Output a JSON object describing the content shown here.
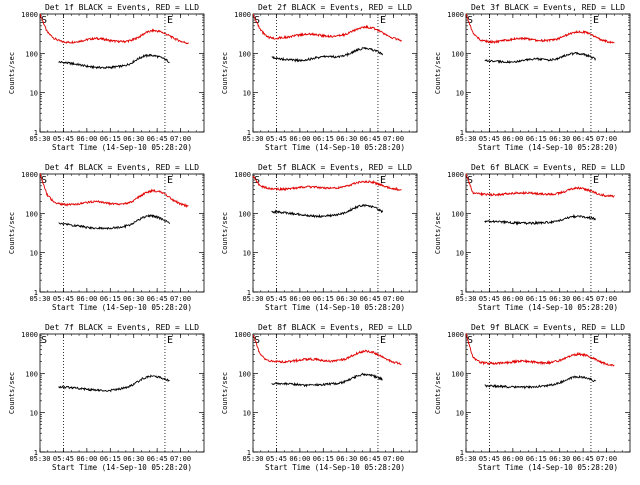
{
  "chart_data": [
    {
      "type": "line",
      "title": "Det 1f BLACK = Events, RED = LLD",
      "xlabel": "Start Time (14-Sep-10 05:28:20)",
      "ylabel": "Counts/sec",
      "x_ticks": [
        "05:30",
        "05:45",
        "06:00",
        "06:15",
        "06:30",
        "06:45",
        "07:00"
      ],
      "y_ticks": [
        "1",
        "10",
        "100",
        "1000"
      ],
      "ylim": [
        1,
        1000
      ],
      "yscale": "log",
      "markers": [
        {
          "label": "S",
          "x": "05:30"
        },
        {
          "label": "E",
          "x": "06:50"
        }
      ],
      "vlines": [
        "05:45",
        "06:50"
      ],
      "series": [
        {
          "color": "#e00000",
          "x_start": "05:30",
          "x_end": "07:05",
          "values": [
            1000,
            350,
            240,
            200,
            190,
            195,
            210,
            230,
            240,
            230,
            210,
            200,
            200,
            215,
            260,
            340,
            380,
            360,
            300,
            240,
            200,
            180
          ]
        },
        {
          "color": "#000000",
          "x_start": "05:42",
          "x_end": "06:53",
          "values": [
            60,
            58,
            55,
            52,
            48,
            45,
            44,
            43,
            44,
            46,
            48,
            55,
            70,
            85,
            90,
            85,
            75,
            60
          ]
        }
      ]
    },
    {
      "type": "line",
      "title": "Det 2f BLACK = Events, RED = LLD",
      "xlabel": "Start Time (14-Sep-10 05:28:20)",
      "ylabel": "Counts/sec",
      "x_ticks": [
        "05:30",
        "05:45",
        "06:00",
        "06:15",
        "06:30",
        "06:45",
        "07:00"
      ],
      "y_ticks": [
        "1",
        "10",
        "100",
        "1000"
      ],
      "ylim": [
        1,
        1000
      ],
      "yscale": "log",
      "markers": [
        {
          "label": "S",
          "x": "05:30"
        },
        {
          "label": "E",
          "x": "06:50"
        }
      ],
      "vlines": [
        "05:45",
        "06:50"
      ],
      "series": [
        {
          "color": "#e00000",
          "x_start": "05:30",
          "x_end": "07:05",
          "values": [
            1000,
            400,
            260,
            240,
            250,
            260,
            280,
            300,
            310,
            300,
            280,
            270,
            275,
            300,
            360,
            430,
            470,
            440,
            360,
            280,
            240,
            210
          ]
        },
        {
          "color": "#000000",
          "x_start": "05:42",
          "x_end": "06:53",
          "values": [
            80,
            75,
            70,
            68,
            66,
            68,
            72,
            78,
            82,
            84,
            80,
            85,
            100,
            120,
            135,
            130,
            115,
            95
          ]
        }
      ]
    },
    {
      "type": "line",
      "title": "Det 3f BLACK = Events, RED = LLD",
      "xlabel": "Start Time (14-Sep-10 05:28:20)",
      "ylabel": "Counts/sec",
      "x_ticks": [
        "05:30",
        "05:45",
        "06:00",
        "06:15",
        "06:30",
        "06:45",
        "07:00"
      ],
      "y_ticks": [
        "1",
        "10",
        "100",
        "1000"
      ],
      "ylim": [
        1,
        1000
      ],
      "yscale": "log",
      "markers": [
        {
          "label": "S",
          "x": "05:30"
        },
        {
          "label": "E",
          "x": "06:50"
        }
      ],
      "vlines": [
        "05:45",
        "06:50"
      ],
      "series": [
        {
          "color": "#e00000",
          "x_start": "05:30",
          "x_end": "07:05",
          "values": [
            1000,
            320,
            220,
            200,
            195,
            205,
            220,
            235,
            240,
            230,
            215,
            210,
            215,
            235,
            280,
            330,
            360,
            340,
            280,
            230,
            200,
            185
          ]
        },
        {
          "color": "#000000",
          "x_start": "05:42",
          "x_end": "06:53",
          "values": [
            65,
            64,
            62,
            60,
            60,
            62,
            66,
            70,
            72,
            70,
            68,
            72,
            85,
            95,
            100,
            95,
            85,
            72
          ]
        }
      ]
    },
    {
      "type": "line",
      "title": "Det 4f BLACK = Events, RED = LLD",
      "xlabel": "Start Time (14-Sep-10 05:28:20)",
      "ylabel": "Counts/sec",
      "x_ticks": [
        "05:30",
        "05:45",
        "06:00",
        "06:15",
        "06:30",
        "06:45",
        "07:00"
      ],
      "y_ticks": [
        "1",
        "10",
        "100",
        "1000"
      ],
      "ylim": [
        1,
        1000
      ],
      "yscale": "log",
      "markers": [
        {
          "label": "S",
          "x": "05:30"
        },
        {
          "label": "E",
          "x": "06:50"
        }
      ],
      "vlines": [
        "05:45",
        "06:50"
      ],
      "series": [
        {
          "color": "#e00000",
          "x_start": "05:30",
          "x_end": "07:05",
          "values": [
            1000,
            300,
            190,
            170,
            165,
            170,
            180,
            195,
            200,
            190,
            175,
            170,
            175,
            200,
            260,
            340,
            380,
            350,
            280,
            210,
            170,
            150
          ]
        },
        {
          "color": "#000000",
          "x_start": "05:42",
          "x_end": "06:53",
          "values": [
            55,
            53,
            50,
            48,
            45,
            43,
            42,
            41,
            42,
            44,
            46,
            52,
            65,
            80,
            88,
            82,
            70,
            55
          ]
        }
      ]
    },
    {
      "type": "line",
      "title": "Det 5f BLACK = Events, RED = LLD",
      "xlabel": "Start Time (14-Sep-10 05:28:20)",
      "ylabel": "Counts/sec",
      "x_ticks": [
        "05:30",
        "05:45",
        "06:00",
        "06:15",
        "06:30",
        "06:45",
        "07:00"
      ],
      "y_ticks": [
        "1",
        "10",
        "100",
        "1000"
      ],
      "ylim": [
        1,
        1000
      ],
      "yscale": "log",
      "markers": [
        {
          "label": "S",
          "x": "05:30"
        },
        {
          "label": "E",
          "x": "06:50"
        }
      ],
      "vlines": [
        "05:45",
        "06:50"
      ],
      "series": [
        {
          "color": "#e00000",
          "x_start": "05:30",
          "x_end": "07:05",
          "values": [
            900,
            500,
            440,
            420,
            410,
            420,
            440,
            460,
            470,
            460,
            440,
            430,
            440,
            470,
            540,
            620,
            650,
            620,
            540,
            460,
            420,
            400
          ]
        },
        {
          "color": "#000000",
          "x_start": "05:42",
          "x_end": "06:53",
          "values": [
            110,
            108,
            104,
            100,
            95,
            90,
            86,
            84,
            85,
            88,
            92,
            100,
            120,
            145,
            160,
            155,
            135,
            110
          ]
        }
      ]
    },
    {
      "type": "line",
      "title": "Det 6f BLACK = Events, RED = LLD",
      "xlabel": "Start Time (14-Sep-10 05:28:20)",
      "ylabel": "Counts/sec",
      "x_ticks": [
        "05:30",
        "05:45",
        "06:00",
        "06:15",
        "06:30",
        "06:45",
        "07:00"
      ],
      "y_ticks": [
        "1",
        "10",
        "100",
        "1000"
      ],
      "ylim": [
        1,
        1000
      ],
      "yscale": "log",
      "markers": [
        {
          "label": "S",
          "x": "05:30"
        },
        {
          "label": "E",
          "x": "06:50"
        }
      ],
      "vlines": [
        "05:45",
        "06:50"
      ],
      "series": [
        {
          "color": "#e00000",
          "x_start": "05:30",
          "x_end": "07:05",
          "values": [
            1000,
            330,
            310,
            300,
            300,
            305,
            320,
            330,
            335,
            330,
            315,
            305,
            305,
            320,
            360,
            420,
            440,
            410,
            350,
            300,
            280,
            270
          ]
        },
        {
          "color": "#000000",
          "x_start": "05:42",
          "x_end": "06:53",
          "values": [
            62,
            62,
            62,
            60,
            58,
            57,
            56,
            56,
            57,
            58,
            60,
            63,
            70,
            80,
            85,
            82,
            78,
            72
          ]
        }
      ]
    },
    {
      "type": "line",
      "title": "Det 7f BLACK = Events, RED = LLD",
      "xlabel": "Start Time (14-Sep-10 05:28:20)",
      "ylabel": "Counts/sec",
      "x_ticks": [
        "05:30",
        "05:45",
        "06:00",
        "06:15",
        "06:30",
        "06:45",
        "07:00"
      ],
      "y_ticks": [
        "1",
        "10",
        "100",
        "1000"
      ],
      "ylim": [
        1,
        1000
      ],
      "yscale": "log",
      "markers": [
        {
          "label": "S",
          "x": "05:30"
        },
        {
          "label": "E",
          "x": "06:50"
        }
      ],
      "vlines": [
        "05:45",
        "06:50"
      ],
      "series": [
        {
          "color": "#000000",
          "x_start": "05:42",
          "x_end": "06:53",
          "values": [
            45,
            44,
            43,
            42,
            40,
            38,
            37,
            36,
            37,
            39,
            42,
            48,
            60,
            75,
            85,
            82,
            75,
            65
          ]
        }
      ]
    },
    {
      "type": "line",
      "title": "Det 8f BLACK = Events, RED = LLD",
      "xlabel": "Start Time (14-Sep-10 05:28:20)",
      "ylabel": "Counts/sec",
      "x_ticks": [
        "05:30",
        "05:45",
        "06:00",
        "06:15",
        "06:30",
        "06:45",
        "07:00"
      ],
      "y_ticks": [
        "1",
        "10",
        "100",
        "1000"
      ],
      "ylim": [
        1,
        1000
      ],
      "yscale": "log",
      "markers": [
        {
          "label": "S",
          "x": "05:30"
        },
        {
          "label": "E",
          "x": "06:50"
        }
      ],
      "vlines": [
        "05:45",
        "06:50"
      ],
      "series": [
        {
          "color": "#e00000",
          "x_start": "05:30",
          "x_end": "07:05",
          "values": [
            1000,
            300,
            210,
            200,
            195,
            200,
            210,
            225,
            230,
            225,
            210,
            205,
            210,
            230,
            280,
            340,
            370,
            340,
            280,
            220,
            190,
            175
          ]
        },
        {
          "color": "#000000",
          "x_start": "05:42",
          "x_end": "06:53",
          "values": [
            55,
            55,
            54,
            53,
            52,
            50,
            50,
            51,
            52,
            54,
            56,
            60,
            70,
            85,
            95,
            92,
            82,
            70
          ]
        }
      ]
    },
    {
      "type": "line",
      "title": "Det 9f BLACK = Events, RED = LLD",
      "xlabel": "Start Time (14-Sep-10 05:28:20)",
      "ylabel": "Counts/sec",
      "x_ticks": [
        "05:30",
        "05:45",
        "06:00",
        "06:15",
        "06:30",
        "06:45",
        "07:00"
      ],
      "y_ticks": [
        "1",
        "10",
        "100",
        "1000"
      ],
      "ylim": [
        1,
        1000
      ],
      "yscale": "log",
      "markers": [
        {
          "label": "S",
          "x": "05:30"
        },
        {
          "label": "E",
          "x": "06:50"
        }
      ],
      "vlines": [
        "05:45",
        "06:50"
      ],
      "series": [
        {
          "color": "#e00000",
          "x_start": "05:30",
          "x_end": "07:05",
          "values": [
            1000,
            250,
            190,
            180,
            178,
            182,
            190,
            200,
            205,
            200,
            190,
            185,
            190,
            205,
            240,
            290,
            310,
            290,
            240,
            195,
            170,
            160
          ]
        },
        {
          "color": "#000000",
          "x_start": "05:42",
          "x_end": "06:53",
          "values": [
            48,
            48,
            47,
            46,
            45,
            44,
            44,
            45,
            46,
            48,
            50,
            54,
            62,
            75,
            82,
            80,
            72,
            62
          ]
        }
      ]
    }
  ]
}
